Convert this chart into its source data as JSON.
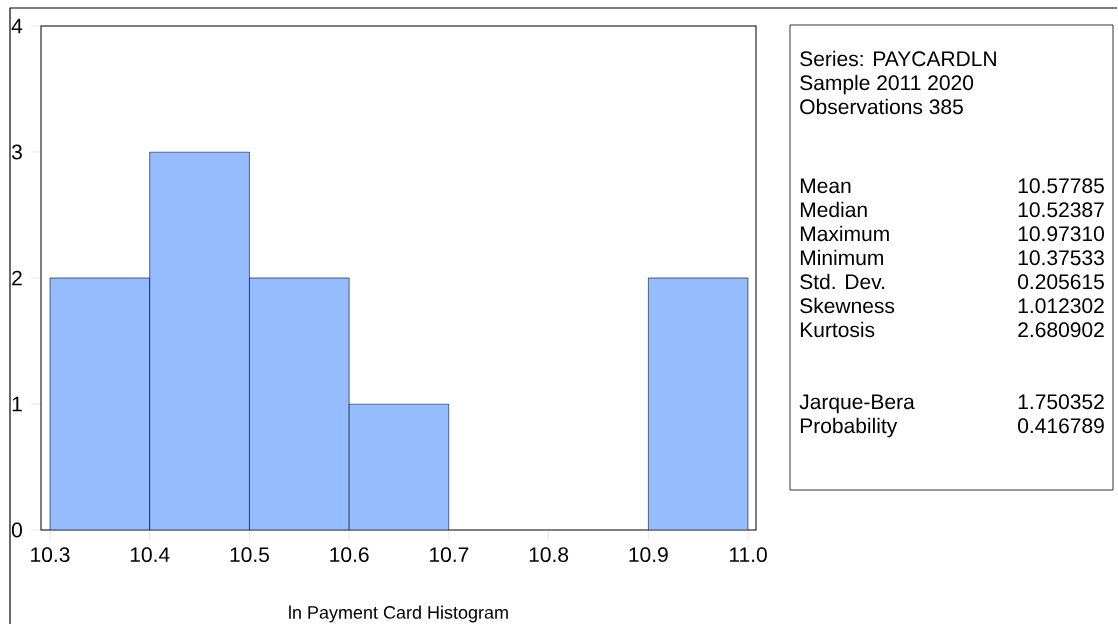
{
  "chart_data": [
    {
      "type": "histogram",
      "xlabel": "ln Payment Card Histogram",
      "bins": [
        10.3,
        10.4,
        10.5,
        10.6,
        10.7,
        10.8,
        10.9,
        11.0
      ],
      "values": [
        2,
        3,
        2,
        1,
        0,
        0,
        2
      ],
      "color": "#95bcff",
      "xlim": [
        10.291,
        11.008
      ],
      "ylim": [
        0,
        4
      ],
      "xticks": [
        10.3,
        10.4,
        10.5,
        10.6,
        10.7,
        10.8,
        10.9,
        {
          "value": 11.0,
          "label": "11.0"
        }
      ],
      "yticks": [
        0,
        1,
        2,
        3,
        4
      ]
    },
    {
      "type": "other",
      "annotations": [
        "Series: PAYCARDLN",
        "Sample 2011 2020",
        "Observations 385",
        "Mean",
        "10.57785",
        "Median",
        "10.52387",
        "Maximum",
        "10.97310",
        "Minimum",
        "10.37533",
        "Std. Dev.",
        "0.205615",
        "Skewness",
        "1.012302",
        "Kurtosis",
        "2.680902",
        "Jarque-Bera",
        "1.750352",
        "Probability",
        "0.416789"
      ]
    }
  ]
}
